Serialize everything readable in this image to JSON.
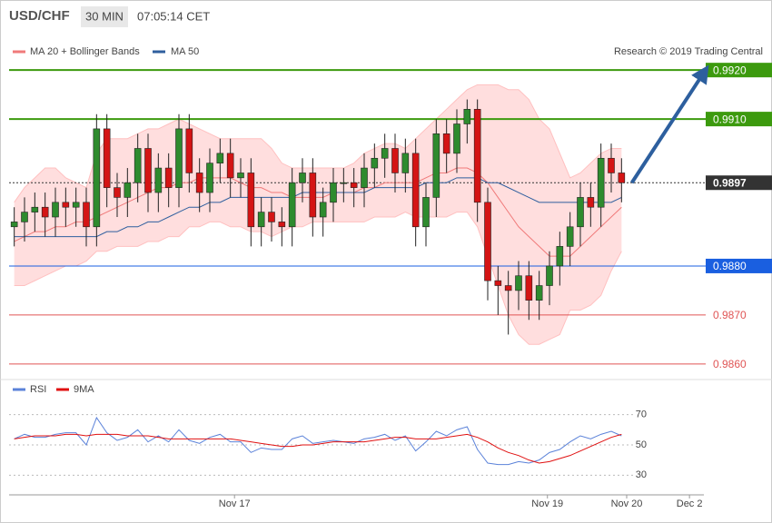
{
  "header": {
    "symbol": "USD/CHF",
    "timeframe": "30 MIN",
    "time": "07:05:14 CET"
  },
  "chart_data": [
    {
      "type": "candlestick",
      "legend": [
        "MA 20 + Bollinger Bands",
        "MA 50"
      ],
      "credit": "Research © 2019 Trading Central",
      "xlim": [
        -0.5,
        67
      ],
      "xticks": [
        {
          "value": 21.4,
          "label": "Nov 17"
        },
        {
          "value": 51.8,
          "label": "Nov 19"
        },
        {
          "value": 59.5,
          "label": "Nov 20"
        },
        {
          "value": 65.6,
          "label": "Dec 2"
        }
      ],
      "ylim": [
        0.98583,
        0.99217
      ],
      "open": [
        0.9888,
        0.9889,
        0.9891,
        0.9892,
        0.989,
        0.9893,
        0.9892,
        0.9893,
        0.9888,
        0.9908,
        0.9896,
        0.9894,
        0.9897,
        0.9904,
        0.9895,
        0.99,
        0.9896,
        0.9908,
        0.9899,
        0.9895,
        0.9901,
        0.9903,
        0.9898,
        0.9899,
        0.9888,
        0.9891,
        0.9889,
        0.9888,
        0.9897,
        0.9899,
        0.989,
        0.9893,
        0.9897,
        0.9897,
        0.9896,
        0.99,
        0.9902,
        0.9904,
        0.9899,
        0.9903,
        0.9888,
        0.9894,
        0.9907,
        0.9903,
        0.9909,
        0.9912,
        0.9893,
        0.9877,
        0.9876,
        0.9875,
        0.9878,
        0.9873,
        0.9876,
        0.988,
        0.9884,
        0.9888,
        0.9894,
        0.9892,
        0.9902,
        0.9899
      ],
      "high": [
        0.9892,
        0.9894,
        0.9895,
        0.9895,
        0.9896,
        0.9896,
        0.9896,
        0.9896,
        0.9911,
        0.9911,
        0.9899,
        0.99,
        0.9907,
        0.9907,
        0.9903,
        0.9903,
        0.9911,
        0.9911,
        0.9902,
        0.9904,
        0.9906,
        0.9906,
        0.9902,
        0.9902,
        0.9894,
        0.9894,
        0.9892,
        0.99,
        0.9902,
        0.9902,
        0.9896,
        0.99,
        0.99,
        0.99,
        0.9903,
        0.9905,
        0.9907,
        0.9907,
        0.9906,
        0.9906,
        0.9897,
        0.991,
        0.991,
        0.9912,
        0.9914,
        0.9914,
        0.9896,
        0.988,
        0.9879,
        0.9881,
        0.9881,
        0.9879,
        0.9883,
        0.9887,
        0.9891,
        0.9897,
        0.9897,
        0.9905,
        0.9905,
        0.9902
      ],
      "low": [
        0.9884,
        0.9885,
        0.9887,
        0.9886,
        0.9886,
        0.9888,
        0.9888,
        0.9884,
        0.9884,
        0.9892,
        0.989,
        0.989,
        0.9893,
        0.9891,
        0.9891,
        0.9892,
        0.9892,
        0.9895,
        0.9891,
        0.9891,
        0.9897,
        0.9894,
        0.9894,
        0.9884,
        0.9884,
        0.9885,
        0.9884,
        0.9884,
        0.9893,
        0.9886,
        0.9886,
        0.9889,
        0.9893,
        0.9892,
        0.9892,
        0.9896,
        0.9898,
        0.9895,
        0.9895,
        0.9884,
        0.9884,
        0.989,
        0.9899,
        0.9899,
        0.9905,
        0.9889,
        0.9873,
        0.987,
        0.9866,
        0.9871,
        0.9869,
        0.9869,
        0.9872,
        0.9876,
        0.988,
        0.9884,
        0.9888,
        0.9888,
        0.9895,
        0.9893
      ],
      "close": [
        0.9889,
        0.9891,
        0.9892,
        0.989,
        0.9893,
        0.9892,
        0.9893,
        0.9888,
        0.9908,
        0.9896,
        0.9894,
        0.9897,
        0.9904,
        0.9895,
        0.99,
        0.9896,
        0.9908,
        0.9899,
        0.9895,
        0.9901,
        0.9903,
        0.9898,
        0.9899,
        0.9888,
        0.9891,
        0.9889,
        0.9888,
        0.9897,
        0.9899,
        0.989,
        0.9893,
        0.9897,
        0.9897,
        0.9896,
        0.99,
        0.9902,
        0.9904,
        0.9899,
        0.9903,
        0.9888,
        0.9894,
        0.9907,
        0.9903,
        0.9909,
        0.9912,
        0.9893,
        0.9877,
        0.9876,
        0.9875,
        0.9878,
        0.9873,
        0.9876,
        0.988,
        0.9884,
        0.9888,
        0.9894,
        0.9892,
        0.9902,
        0.9899,
        0.9897
      ],
      "up_color": "#2e8b2e",
      "down_color": "#d41414",
      "bands": {
        "color": "#ffdede",
        "upper": [
          0.9893,
          0.9896,
          0.9898,
          0.99,
          0.99,
          0.9898,
          0.9897,
          0.9896,
          0.9903,
          0.9906,
          0.9906,
          0.9906,
          0.9907,
          0.9908,
          0.9908,
          0.9909,
          0.991,
          0.9909,
          0.9908,
          0.9907,
          0.9906,
          0.9906,
          0.9906,
          0.9906,
          0.9906,
          0.9904,
          0.9901,
          0.99,
          0.99,
          0.99,
          0.99,
          0.99,
          0.99,
          0.9901,
          0.9903,
          0.9904,
          0.9905,
          0.9905,
          0.9904,
          0.9906,
          0.9908,
          0.991,
          0.9912,
          0.9914,
          0.9916,
          0.9917,
          0.9917,
          0.9917,
          0.9916,
          0.9916,
          0.9914,
          0.991,
          0.9908,
          0.9903,
          0.9898,
          0.9899,
          0.9901,
          0.9903,
          0.9904,
          0.9904
        ],
        "lower": [
          0.9876,
          0.9876,
          0.9877,
          0.9878,
          0.9879,
          0.988,
          0.988,
          0.9881,
          0.9883,
          0.9883,
          0.9884,
          0.9884,
          0.9884,
          0.9885,
          0.9885,
          0.9886,
          0.9886,
          0.9888,
          0.9888,
          0.9889,
          0.9889,
          0.9888,
          0.9888,
          0.9887,
          0.9887,
          0.9886,
          0.9887,
          0.9888,
          0.9888,
          0.9889,
          0.9889,
          0.9889,
          0.9889,
          0.9889,
          0.9889,
          0.989,
          0.989,
          0.989,
          0.9891,
          0.989,
          0.989,
          0.989,
          0.989,
          0.9891,
          0.9891,
          0.9888,
          0.9882,
          0.9876,
          0.987,
          0.9866,
          0.9864,
          0.9864,
          0.9865,
          0.9866,
          0.9871,
          0.9871,
          0.9872,
          0.9874,
          0.9879,
          0.9883
        ]
      },
      "series": [
        {
          "name": "MA 20",
          "color": "#f07a7a",
          "values": [
            0.9885,
            0.9886,
            0.9887,
            0.9887,
            0.9888,
            0.9888,
            0.9889,
            0.9889,
            0.989,
            0.9891,
            0.9892,
            0.9893,
            0.9894,
            0.9895,
            0.9896,
            0.9896,
            0.9897,
            0.9897,
            0.9898,
            0.9898,
            0.9898,
            0.9898,
            0.9897,
            0.9896,
            0.9896,
            0.9895,
            0.9895,
            0.9894,
            0.9894,
            0.9894,
            0.9894,
            0.9895,
            0.9895,
            0.9895,
            0.9896,
            0.9896,
            0.9897,
            0.9897,
            0.9897,
            0.9897,
            0.9898,
            0.9899,
            0.9899,
            0.99,
            0.99,
            0.9899,
            0.9897,
            0.9894,
            0.9891,
            0.9888,
            0.9886,
            0.9884,
            0.9882,
            0.9882,
            0.9882,
            0.9884,
            0.9886,
            0.9888,
            0.989,
            0.9892
          ]
        },
        {
          "name": "MA 50",
          "color": "#2f5f9e",
          "values": [
            0.9886,
            0.9886,
            0.9886,
            0.9886,
            0.9886,
            0.9886,
            0.9886,
            0.9886,
            0.9886,
            0.9887,
            0.9887,
            0.9888,
            0.9888,
            0.9889,
            0.9889,
            0.989,
            0.9891,
            0.9892,
            0.9892,
            0.9893,
            0.9893,
            0.9894,
            0.9894,
            0.9894,
            0.9894,
            0.9894,
            0.9894,
            0.9894,
            0.9895,
            0.9895,
            0.9895,
            0.9895,
            0.9895,
            0.9895,
            0.9895,
            0.9896,
            0.9896,
            0.9896,
            0.9896,
            0.9896,
            0.9897,
            0.9897,
            0.9897,
            0.9898,
            0.9898,
            0.9898,
            0.9897,
            0.9897,
            0.9896,
            0.9895,
            0.9894,
            0.9893,
            0.9893,
            0.9893,
            0.9893,
            0.9893,
            0.9893,
            0.9893,
            0.9893,
            0.9894
          ]
        }
      ],
      "levels": [
        {
          "value": 0.992,
          "label": "0.9920",
          "color": "#3c9a0e",
          "style": "box"
        },
        {
          "value": 0.991,
          "label": "0.9910",
          "color": "#3c9a0e",
          "style": "box"
        },
        {
          "value": 0.9897,
          "label": "0.9897",
          "color": "#333333",
          "style": "dotted"
        },
        {
          "value": 0.988,
          "label": "0.9880",
          "color": "#1a5fe0",
          "style": "box"
        },
        {
          "value": 0.987,
          "label": "0.9870",
          "color": "#e05555",
          "style": "text"
        },
        {
          "value": 0.986,
          "label": "0.9860",
          "color": "#e05555",
          "style": "text"
        }
      ],
      "projection": {
        "from": [
          60,
          0.9897
        ],
        "to": [
          67,
          0.99195
        ],
        "color": "#2d5f9e"
      }
    },
    {
      "type": "line",
      "xlim": [
        -0.5,
        67
      ],
      "ylim": [
        20,
        80
      ],
      "yticks": [
        30,
        50,
        70
      ],
      "grid": true,
      "series": [
        {
          "name": "RSI",
          "color": "#5b82d9",
          "values": [
            54,
            57,
            55,
            55,
            57,
            58,
            58,
            50,
            68,
            58,
            53,
            55,
            60,
            52,
            56,
            52,
            60,
            53,
            51,
            55,
            57,
            52,
            52,
            45,
            48,
            47,
            47,
            54,
            56,
            51,
            52,
            53,
            52,
            51,
            54,
            55,
            57,
            53,
            56,
            46,
            52,
            59,
            56,
            60,
            62,
            47,
            38,
            37,
            37,
            39,
            38,
            40,
            45,
            47,
            52,
            56,
            54,
            57,
            59,
            56
          ]
        },
        {
          "name": "9MA",
          "color": "#e01010",
          "values": [
            54,
            55,
            56,
            56,
            56,
            57,
            57,
            56,
            57,
            57,
            57,
            56,
            56,
            56,
            55,
            54,
            54,
            54,
            54,
            54,
            54,
            54,
            53,
            52,
            51,
            50,
            49,
            49,
            50,
            50,
            51,
            52,
            52,
            52,
            52,
            53,
            54,
            55,
            55,
            54,
            54,
            54,
            55,
            56,
            57,
            55,
            52,
            48,
            45,
            43,
            40,
            38,
            39,
            41,
            43,
            46,
            49,
            52,
            55,
            57
          ]
        }
      ]
    }
  ]
}
